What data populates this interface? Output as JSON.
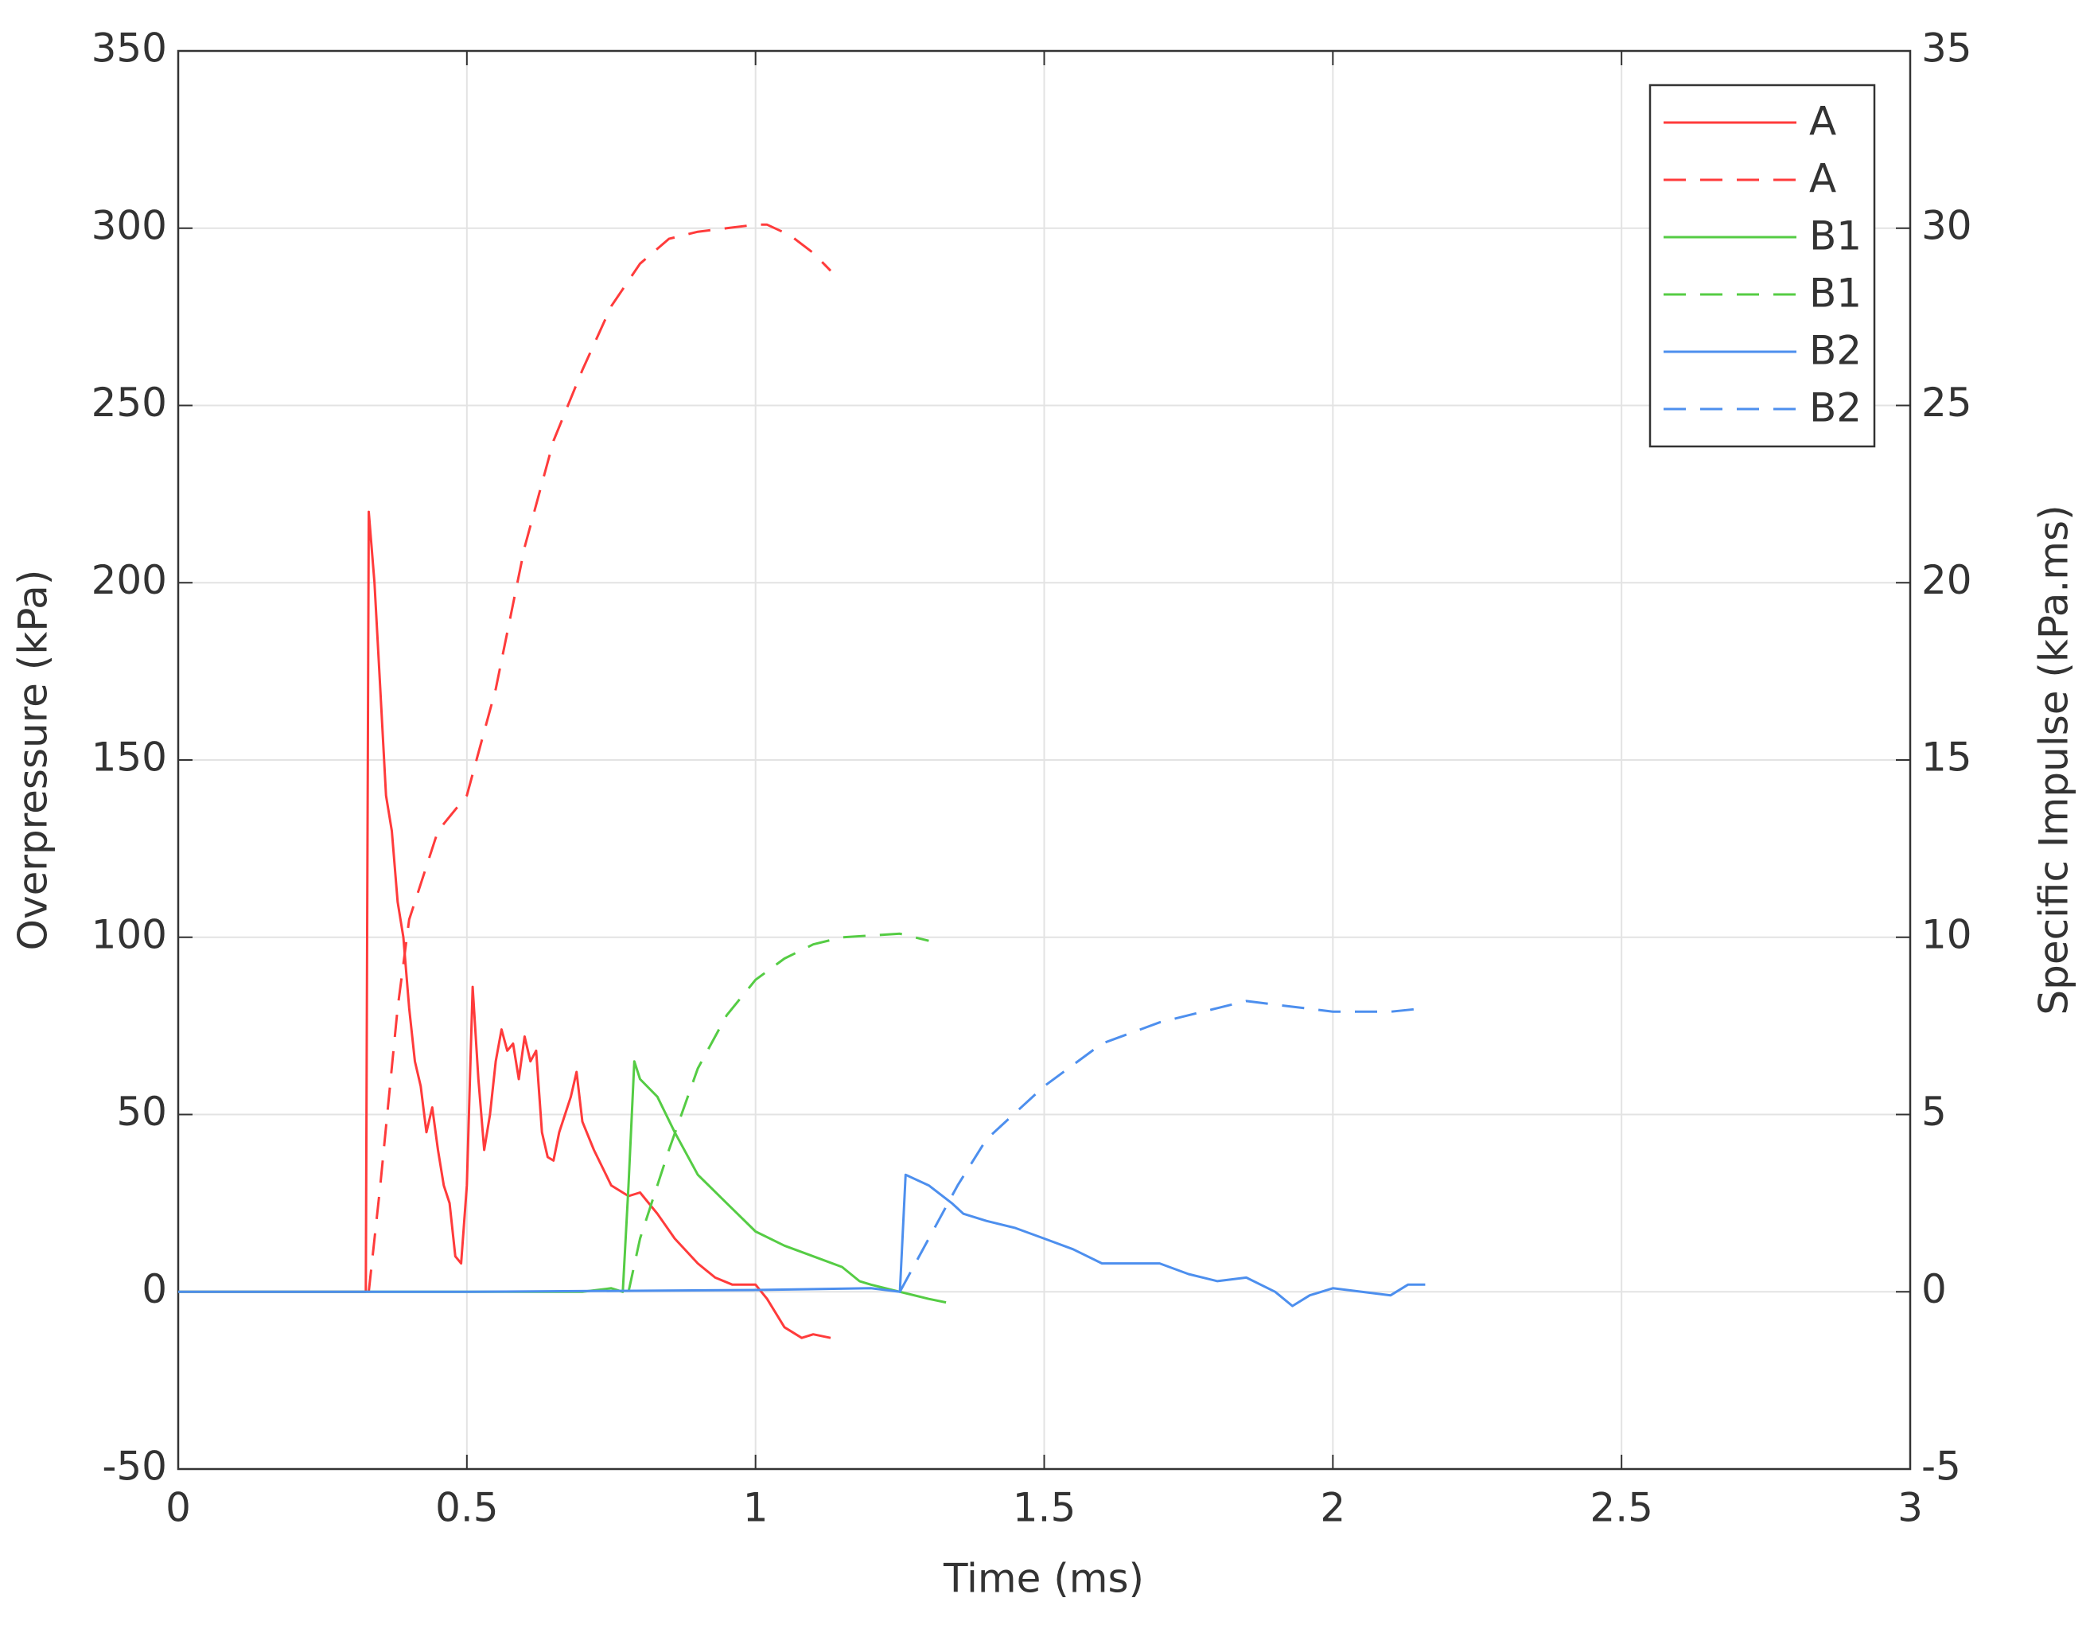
{
  "chart_data": {
    "type": "line",
    "xlabel": "Time (ms)",
    "ylabel": "Overpressure (kPa)",
    "y2label": "Specific Impulse (kPa.ms)",
    "xlim": [
      0,
      3
    ],
    "xticks": [
      0,
      0.5,
      1,
      1.5,
      2,
      2.5,
      3
    ],
    "ylim": [
      -50,
      350
    ],
    "yticks": [
      -50,
      0,
      50,
      100,
      150,
      200,
      250,
      300,
      350
    ],
    "y2lim": [
      -5,
      35
    ],
    "y2ticks": [
      -5,
      0,
      5,
      10,
      15,
      20,
      25,
      30,
      35
    ],
    "grid": true,
    "legend": "upper right",
    "series": [
      {
        "name": "A",
        "color": "#ff3b3b",
        "dash": false,
        "x": [
          0,
          0.32,
          0.325,
          0.33,
          0.34,
          0.35,
          0.36,
          0.37,
          0.38,
          0.39,
          0.4,
          0.41,
          0.42,
          0.43,
          0.44,
          0.45,
          0.46,
          0.47,
          0.48,
          0.49,
          0.5,
          0.51,
          0.52,
          0.53,
          0.54,
          0.55,
          0.56,
          0.57,
          0.58,
          0.59,
          0.6,
          0.61,
          0.62,
          0.63,
          0.64,
          0.65,
          0.66,
          0.67,
          0.68,
          0.69,
          0.7,
          0.72,
          0.75,
          0.78,
          0.8,
          0.83,
          0.86,
          0.9,
          0.93,
          0.96,
          1.0,
          1.02,
          1.05,
          1.08,
          1.1,
          1.13
        ],
        "values": [
          0,
          0,
          0,
          220,
          200,
          170,
          140,
          130,
          110,
          100,
          80,
          65,
          58,
          45,
          52,
          40,
          30,
          25,
          10,
          8,
          30,
          86,
          60,
          40,
          50,
          65,
          74,
          68,
          70,
          60,
          72,
          65,
          68,
          45,
          38,
          37,
          45,
          50,
          55,
          62,
          48,
          40,
          30,
          27,
          28,
          22,
          15,
          8,
          4,
          2,
          2,
          -2,
          -10,
          -13,
          -12,
          -13
        ]
      },
      {
        "name": "A",
        "color": "#ff3b3b",
        "dash": true,
        "axis": "y2",
        "x": [
          0.33,
          0.35,
          0.38,
          0.4,
          0.45,
          0.5,
          0.55,
          0.6,
          0.65,
          0.7,
          0.75,
          0.8,
          0.85,
          0.9,
          0.95,
          1.0,
          1.02,
          1.06,
          1.1,
          1.13
        ],
        "values": [
          0,
          3,
          8,
          10.5,
          13,
          14,
          17,
          21,
          24,
          26,
          27.8,
          29,
          29.7,
          29.9,
          30,
          30.1,
          30.1,
          29.8,
          29.3,
          28.8
        ]
      },
      {
        "name": "B1",
        "color": "#55cc44",
        "dash": false,
        "x": [
          0,
          0.7,
          0.75,
          0.77,
          0.78,
          0.79,
          0.8,
          0.83,
          0.86,
          0.9,
          0.95,
          1.0,
          1.05,
          1.1,
          1.15,
          1.18,
          1.2,
          1.25,
          1.3,
          1.33
        ],
        "values": [
          0,
          0,
          1,
          0,
          30,
          65,
          60,
          55,
          45,
          33,
          25,
          17,
          13,
          10,
          7,
          3,
          2,
          0,
          -2,
          -3
        ]
      },
      {
        "name": "B1",
        "color": "#55cc44",
        "dash": true,
        "axis": "y2",
        "x": [
          0.78,
          0.8,
          0.85,
          0.9,
          0.95,
          1.0,
          1.05,
          1.1,
          1.15,
          1.2,
          1.25,
          1.3
        ],
        "values": [
          0,
          1.5,
          4,
          6.3,
          7.8,
          8.8,
          9.4,
          9.8,
          10,
          10.05,
          10.1,
          9.9
        ]
      },
      {
        "name": "B2",
        "color": "#4d8fee",
        "dash": false,
        "x": [
          0,
          0.5,
          1.0,
          1.2,
          1.25,
          1.26,
          1.3,
          1.34,
          1.36,
          1.4,
          1.45,
          1.5,
          1.55,
          1.6,
          1.7,
          1.75,
          1.8,
          1.85,
          1.9,
          1.93,
          1.96,
          2.0,
          2.05,
          2.1,
          2.13,
          2.16
        ],
        "values": [
          0,
          0,
          0.5,
          1,
          0,
          33,
          30,
          25,
          22,
          20,
          18,
          15,
          12,
          8,
          8,
          5,
          3,
          4,
          0,
          -4,
          -1,
          1,
          0,
          -1,
          2,
          2
        ]
      },
      {
        "name": "B2",
        "color": "#4d8fee",
        "dash": true,
        "axis": "y2",
        "x": [
          1.25,
          1.3,
          1.35,
          1.4,
          1.5,
          1.6,
          1.7,
          1.8,
          1.85,
          1.9,
          1.95,
          2.0,
          2.1,
          2.16
        ],
        "values": [
          0,
          1.5,
          3,
          4.3,
          5.8,
          7,
          7.6,
          8,
          8.2,
          8.1,
          8,
          7.9,
          7.9,
          8
        ]
      }
    ]
  }
}
